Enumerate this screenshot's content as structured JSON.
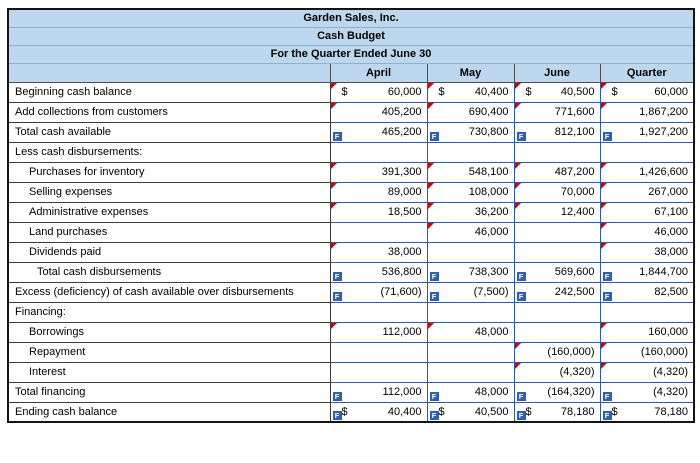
{
  "titles": [
    "Garden Sales, Inc.",
    "Cash Budget",
    "For the Quarter Ended June 30"
  ],
  "columns": [
    "April",
    "May",
    "June",
    "Quarter"
  ],
  "currency_symbol": "$",
  "icons": {
    "formula": "F",
    "comment_marker": "red-triangle"
  },
  "colors": {
    "header_blue": "#bdd7ee",
    "entry_border_blue": "#2f5aa7",
    "marker_red": "#d40000",
    "formula_badge_blue": "#2d5fb3"
  },
  "rows": [
    {
      "label": "Beginning cash balance",
      "indent": 0,
      "cells": [
        {
          "v": "60,000",
          "dollar": true,
          "red": true
        },
        {
          "v": "40,400",
          "dollar": true,
          "red": true
        },
        {
          "v": "40,500",
          "dollar": true,
          "red": true
        },
        {
          "v": "60,000",
          "dollar": true,
          "red": true
        }
      ]
    },
    {
      "label": "Add collections from customers",
      "indent": 0,
      "cells": [
        {
          "v": "405,200",
          "red": true
        },
        {
          "v": "690,400",
          "red": true
        },
        {
          "v": "771,600",
          "red": true
        },
        {
          "v": "1,867,200",
          "red": true
        }
      ]
    },
    {
      "label": "Total cash available",
      "indent": 0,
      "cells": [
        {
          "v": "465,200",
          "f": true
        },
        {
          "v": "730,800",
          "f": true
        },
        {
          "v": "812,100",
          "f": true
        },
        {
          "v": "1,927,200",
          "f": true
        }
      ]
    },
    {
      "label": "Less cash disbursements:",
      "indent": 0,
      "cells": [
        {
          "v": ""
        },
        {
          "v": ""
        },
        {
          "v": ""
        },
        {
          "v": ""
        }
      ]
    },
    {
      "label": "Purchases for inventory",
      "indent": 1,
      "cells": [
        {
          "v": "391,300",
          "red": true
        },
        {
          "v": "548,100",
          "red": true
        },
        {
          "v": "487,200",
          "red": true
        },
        {
          "v": "1,426,600",
          "red": true
        }
      ]
    },
    {
      "label": "Selling expenses",
      "indent": 1,
      "cells": [
        {
          "v": "89,000",
          "red": true
        },
        {
          "v": "108,000",
          "red": true
        },
        {
          "v": "70,000",
          "red": true
        },
        {
          "v": "267,000",
          "red": true
        }
      ]
    },
    {
      "label": "Administrative expenses",
      "indent": 1,
      "cells": [
        {
          "v": "18,500",
          "red": true
        },
        {
          "v": "36,200",
          "red": true
        },
        {
          "v": "12,400",
          "red": true
        },
        {
          "v": "67,100",
          "red": true
        }
      ]
    },
    {
      "label": "Land purchases",
      "indent": 1,
      "cells": [
        {
          "v": ""
        },
        {
          "v": "46,000",
          "red": true
        },
        {
          "v": ""
        },
        {
          "v": "46,000",
          "red": true
        }
      ]
    },
    {
      "label": "Dividends paid",
      "indent": 1,
      "cells": [
        {
          "v": "38,000",
          "red": true
        },
        {
          "v": ""
        },
        {
          "v": ""
        },
        {
          "v": "38,000",
          "red": true
        }
      ]
    },
    {
      "label": "Total cash disbursements",
      "indent": 2,
      "cells": [
        {
          "v": "536,800",
          "f": true
        },
        {
          "v": "738,300",
          "f": true
        },
        {
          "v": "569,600",
          "f": true
        },
        {
          "v": "1,844,700",
          "f": true
        }
      ]
    },
    {
      "label": "Excess (deficiency) of cash available over disbursements",
      "indent": 0,
      "cells": [
        {
          "v": "(71,600)",
          "f": true
        },
        {
          "v": "(7,500)",
          "f": true
        },
        {
          "v": "242,500",
          "f": true
        },
        {
          "v": "82,500",
          "f": true
        }
      ]
    },
    {
      "label": "Financing:",
      "indent": 0,
      "cells": [
        {
          "v": ""
        },
        {
          "v": ""
        },
        {
          "v": ""
        },
        {
          "v": ""
        }
      ]
    },
    {
      "label": "Borrowings",
      "indent": 1,
      "cells": [
        {
          "v": "112,000",
          "red": true
        },
        {
          "v": "48,000",
          "red": true
        },
        {
          "v": ""
        },
        {
          "v": "160,000",
          "red": true
        }
      ]
    },
    {
      "label": "Repayment",
      "indent": 1,
      "cells": [
        {
          "v": ""
        },
        {
          "v": ""
        },
        {
          "v": "(160,000)",
          "red": true
        },
        {
          "v": "(160,000)",
          "red": true
        }
      ]
    },
    {
      "label": "Interest",
      "indent": 1,
      "cells": [
        {
          "v": ""
        },
        {
          "v": ""
        },
        {
          "v": "(4,320)",
          "red": true
        },
        {
          "v": "(4,320)",
          "red": true
        }
      ]
    },
    {
      "label": "Total financing",
      "indent": 0,
      "cells": [
        {
          "v": "112,000",
          "f": true
        },
        {
          "v": "48,000",
          "f": true
        },
        {
          "v": "(164,320)",
          "f": true
        },
        {
          "v": "(4,320)",
          "f": true
        }
      ]
    },
    {
      "label": "Ending cash balance",
      "indent": 0,
      "cells": [
        {
          "v": "40,400",
          "dollar": true,
          "f": true
        },
        {
          "v": "40,500",
          "dollar": true,
          "f": true
        },
        {
          "v": "78,180",
          "dollar": true,
          "f": true
        },
        {
          "v": "78,180",
          "dollar": true,
          "f": true
        }
      ]
    }
  ]
}
